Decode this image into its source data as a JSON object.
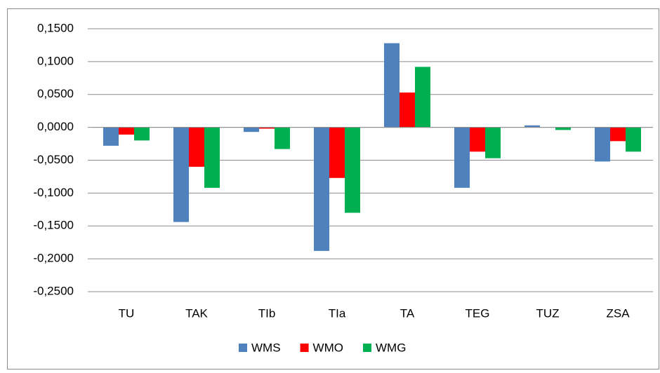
{
  "chart_data": {
    "type": "bar",
    "categories": [
      "TU",
      "TAK",
      "TIb",
      "TIa",
      "TA",
      "TEG",
      "TUZ",
      "ZSA"
    ],
    "series": [
      {
        "name": "WMS",
        "color": "#4f81bd",
        "values": [
          -0.028,
          -0.144,
          -0.007,
          -0.188,
          0.128,
          -0.092,
          0.003,
          -0.052
        ]
      },
      {
        "name": "WMO",
        "color": "#ff0000",
        "values": [
          -0.011,
          -0.06,
          -0.002,
          -0.077,
          0.053,
          -0.037,
          0.0,
          -0.021
        ]
      },
      {
        "name": "WMG",
        "color": "#00b050",
        "values": [
          -0.02,
          -0.092,
          -0.033,
          -0.13,
          0.092,
          -0.047,
          -0.004,
          -0.037
        ]
      }
    ],
    "ylim": [
      -0.25,
      0.15
    ],
    "yticks": [
      {
        "value": 0.15,
        "label": "0,1500"
      },
      {
        "value": 0.1,
        "label": "0,1000"
      },
      {
        "value": 0.05,
        "label": "0,0500"
      },
      {
        "value": 0,
        "label": "0,0000"
      },
      {
        "value": -0.05,
        "label": "-0,0500"
      },
      {
        "value": -0.1,
        "label": "-0,1000"
      },
      {
        "value": -0.15,
        "label": "-0,1500"
      },
      {
        "value": -0.2,
        "label": "-0,2000"
      },
      {
        "value": -0.25,
        "label": "-0,2500"
      }
    ],
    "grid": true,
    "legend": "bottom"
  }
}
